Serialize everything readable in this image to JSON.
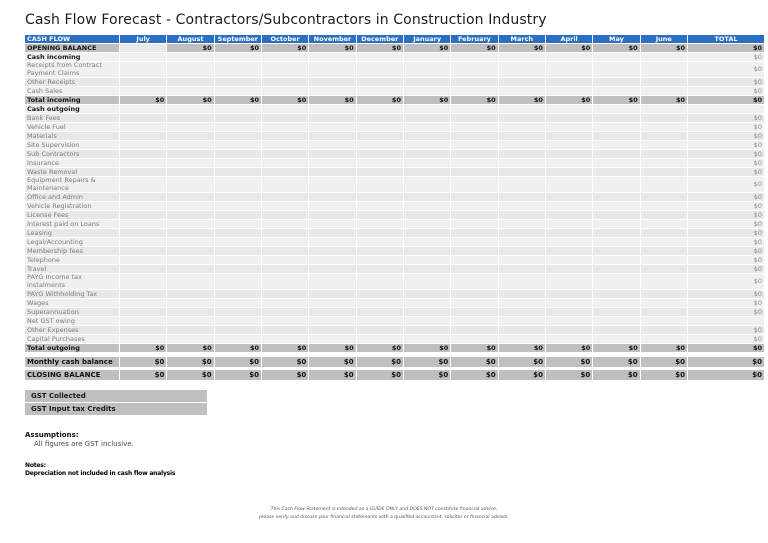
{
  "title": "Cash Flow Forecast - Contractors/Subcontractors in Construction Industry",
  "table": {
    "header": [
      "CASH FLOW",
      "July",
      "August",
      "September",
      "October",
      "November",
      "December",
      "January",
      "February",
      "March",
      "April",
      "May",
      "June",
      "TOTAL"
    ],
    "rows": [
      {
        "label": "OPENING BALANCE",
        "style": "opening",
        "months": [
          "",
          "$0",
          "$0",
          "$0",
          "$0",
          "$0",
          "$0",
          "$0",
          "$0",
          "$0",
          "$0",
          "$0"
        ],
        "total": "$0"
      },
      {
        "label": "Cash incoming",
        "style": "section",
        "months": [
          "",
          "",
          "",
          "",
          "",
          "",
          "",
          "",
          "",
          "",
          "",
          ""
        ],
        "total": "$0"
      },
      {
        "label": "Receipts from Contract Payment Claims",
        "style": "item tall",
        "months": [
          "",
          "",
          "",
          "",
          "",
          "",
          "",
          "",
          "",
          "",
          "",
          ""
        ],
        "total": "$0"
      },
      {
        "label": "Other Receipts",
        "style": "item alt",
        "months": [
          "",
          "",
          "",
          "",
          "",
          "",
          "",
          "",
          "",
          "",
          "",
          ""
        ],
        "total": "$0"
      },
      {
        "label": "Cash  Sales",
        "style": "item",
        "months": [
          "",
          "",
          "",
          "",
          "",
          "",
          "",
          "",
          "",
          "",
          "",
          ""
        ],
        "total": "$0"
      },
      {
        "label": "Total incoming",
        "style": "total",
        "months": [
          "$0",
          "$0",
          "$0",
          "$0",
          "$0",
          "$0",
          "$0",
          "$0",
          "$0",
          "$0",
          "$0",
          "$0"
        ],
        "total": "$0"
      },
      {
        "label": "Cash outgoing",
        "style": "section",
        "months": [
          "",
          "",
          "",
          "",
          "",
          "",
          "",
          "",
          "",
          "",
          "",
          ""
        ],
        "total": ""
      },
      {
        "label": "Bank Fees",
        "style": "item alt",
        "months": [
          "",
          "",
          "",
          "",
          "",
          "",
          "",
          "",
          "",
          "",
          "",
          ""
        ],
        "total": "$0"
      },
      {
        "label": "Vehicle Fuel",
        "style": "item",
        "months": [
          "",
          "",
          "",
          "",
          "",
          "",
          "",
          "",
          "",
          "",
          "",
          ""
        ],
        "total": "$0"
      },
      {
        "label": "Materials",
        "style": "item alt",
        "months": [
          "",
          "",
          "",
          "",
          "",
          "",
          "",
          "",
          "",
          "",
          "",
          ""
        ],
        "total": "$0"
      },
      {
        "label": "Site Supervision",
        "style": "item",
        "months": [
          "",
          "",
          "",
          "",
          "",
          "",
          "",
          "",
          "",
          "",
          "",
          ""
        ],
        "total": "$0"
      },
      {
        "label": "Sub Contractors",
        "style": "item alt",
        "months": [
          "",
          "",
          "",
          "",
          "",
          "",
          "",
          "",
          "",
          "",
          "",
          ""
        ],
        "total": "$0"
      },
      {
        "label": "Insurance",
        "style": "item",
        "months": [
          "",
          "",
          "",
          "",
          "",
          "",
          "",
          "",
          "",
          "",
          "",
          ""
        ],
        "total": "$0"
      },
      {
        "label": "Waste Removal",
        "style": "item alt",
        "months": [
          "",
          "",
          "",
          "",
          "",
          "",
          "",
          "",
          "",
          "",
          "",
          ""
        ],
        "total": "$0"
      },
      {
        "label": "Equipment Repairs & Maintenance",
        "style": "item tall",
        "months": [
          "",
          "",
          "",
          "",
          "",
          "",
          "",
          "",
          "",
          "",
          "",
          ""
        ],
        "total": "$0"
      },
      {
        "label": "Office and Admin",
        "style": "item alt",
        "months": [
          "",
          "",
          "",
          "",
          "",
          "",
          "",
          "",
          "",
          "",
          "",
          ""
        ],
        "total": "$0"
      },
      {
        "label": "Vehicle Registration",
        "style": "item",
        "months": [
          "",
          "",
          "",
          "",
          "",
          "",
          "",
          "",
          "",
          "",
          "",
          ""
        ],
        "total": "$0"
      },
      {
        "label": "License Fees",
        "style": "item alt",
        "months": [
          "",
          "",
          "",
          "",
          "",
          "",
          "",
          "",
          "",
          "",
          "",
          ""
        ],
        "total": "$0"
      },
      {
        "label": "Interest paid on Loans",
        "style": "item",
        "months": [
          "",
          "",
          "",
          "",
          "",
          "",
          "",
          "",
          "",
          "",
          "",
          ""
        ],
        "total": "$0"
      },
      {
        "label": "Leasing",
        "style": "item alt",
        "months": [
          "",
          "",
          "",
          "",
          "",
          "",
          "",
          "",
          "",
          "",
          "",
          ""
        ],
        "total": "$0"
      },
      {
        "label": "Legal/Accounting",
        "style": "item",
        "months": [
          "",
          "",
          "",
          "",
          "",
          "",
          "",
          "",
          "",
          "",
          "",
          ""
        ],
        "total": "$0"
      },
      {
        "label": "Membership fees",
        "style": "item alt",
        "months": [
          "",
          "",
          "",
          "",
          "",
          "",
          "",
          "",
          "",
          "",
          "",
          ""
        ],
        "total": "$0"
      },
      {
        "label": "Telephone",
        "style": "item",
        "months": [
          "",
          "",
          "",
          "",
          "",
          "",
          "",
          "",
          "",
          "",
          "",
          ""
        ],
        "total": "$0"
      },
      {
        "label": "Travel",
        "style": "item alt",
        "months": [
          "",
          "",
          "",
          "",
          "",
          "",
          "",
          "",
          "",
          "",
          "",
          ""
        ],
        "total": "$0"
      },
      {
        "label": "PAYG Income tax instalments",
        "style": "item tall",
        "months": [
          "",
          "",
          "",
          "",
          "",
          "",
          "",
          "",
          "",
          "",
          "",
          ""
        ],
        "total": "$0"
      },
      {
        "label": "PAYG Withholding Tax",
        "style": "item alt",
        "months": [
          "",
          "",
          "",
          "",
          "",
          "",
          "",
          "",
          "",
          "",
          "",
          ""
        ],
        "total": "$0"
      },
      {
        "label": "Wages",
        "style": "item",
        "months": [
          "",
          "",
          "",
          "",
          "",
          "",
          "",
          "",
          "",
          "",
          "",
          ""
        ],
        "total": "$0"
      },
      {
        "label": "Superannuation",
        "style": "item alt",
        "months": [
          "",
          "",
          "",
          "",
          "",
          "",
          "",
          "",
          "",
          "",
          "",
          ""
        ],
        "total": "$0"
      },
      {
        "label": "Net GST owing",
        "style": "item",
        "months": [
          "",
          "",
          "",
          "",
          "",
          "",
          "",
          "",
          "",
          "",
          "",
          ""
        ],
        "total": ""
      },
      {
        "label": "Other Expenses",
        "style": "item alt",
        "months": [
          "",
          "",
          "",
          "",
          "",
          "",
          "",
          "",
          "",
          "",
          "",
          ""
        ],
        "total": "$0"
      },
      {
        "label": "Capital Purchases",
        "style": "item",
        "months": [
          "",
          "",
          "",
          "",
          "",
          "",
          "",
          "",
          "",
          "",
          "",
          ""
        ],
        "total": "$0"
      },
      {
        "label": "Total outgoing",
        "style": "total",
        "months": [
          "$0",
          "$0",
          "$0",
          "$0",
          "$0",
          "$0",
          "$0",
          "$0",
          "$0",
          "$0",
          "$0",
          "$0"
        ],
        "total": "$0"
      },
      {
        "label": "",
        "style": "spacer",
        "months": [],
        "total": ""
      },
      {
        "label": "Monthly cash balance",
        "style": "balance",
        "months": [
          "$0",
          "$0",
          "$0",
          "$0",
          "$0",
          "$0",
          "$0",
          "$0",
          "$0",
          "$0",
          "$0",
          "$0"
        ],
        "total": "$0"
      },
      {
        "label": "",
        "style": "spacer thin",
        "months": [],
        "total": ""
      },
      {
        "label": "CLOSING BALANCE",
        "style": "balance",
        "months": [
          "$0",
          "$0",
          "$0",
          "$0",
          "$0",
          "$0",
          "$0",
          "$0",
          "$0",
          "$0",
          "$0",
          "$0"
        ],
        "total": "$0"
      }
    ]
  },
  "gst": {
    "collected_label": "GST Collected",
    "input_credits_label": "GST Input tax Credits"
  },
  "assumptions": {
    "heading": "Assumptions:",
    "text": "All figures are GST inclusive."
  },
  "notes": {
    "heading": "Notes:",
    "text": "Depreciation not included in cash flow analysis"
  },
  "disclaimer": {
    "line1": "This Cash Flow Statement is intended as a GUIDE ONLY and DOES NOT constitute financial advice,",
    "line2": "please verify and discuss your financial statements with a qualified accountant, solicitor or financial advisor."
  },
  "colors": {
    "header_bg": "#2b70c0",
    "band_gray": "#bfbfbf",
    "row_light": "#f0f0f0",
    "row_alt": "#e8e8e8",
    "label_gray": "#7c7c7c"
  }
}
